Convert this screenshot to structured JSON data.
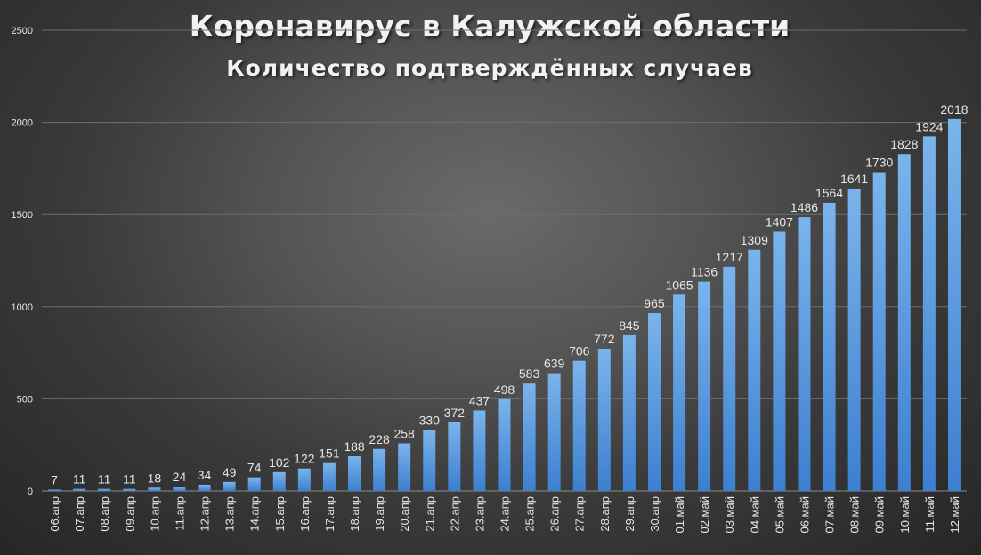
{
  "colors": {
    "bar_top": "#7ab4ec",
    "bar_bottom": "#3d7fd0",
    "text": "#e6e6e6",
    "grid": "#6e6e6e"
  },
  "chart_data": {
    "type": "bar",
    "title": "Коронавирус в Калужской области",
    "subtitle": "Количество подтверждённых случаев",
    "categories": [
      "06.апр",
      "07.апр",
      "08.апр",
      "09.апр",
      "10.апр",
      "11.апр",
      "12.апр",
      "13.апр",
      "14.апр",
      "15.апр",
      "16.апр",
      "17.апр",
      "18.апр",
      "19.апр",
      "20.апр",
      "21.апр",
      "22.апр",
      "23.апр",
      "24.апр",
      "25.апр",
      "26.апр",
      "27.апр",
      "28.апр",
      "29.апр",
      "30.апр",
      "01.май",
      "02.май",
      "03.май",
      "04.май",
      "05.май",
      "06.май",
      "07.май",
      "08.май",
      "09.май",
      "10.май",
      "11.май",
      "12.май"
    ],
    "values": [
      7,
      11,
      11,
      11,
      18,
      24,
      34,
      49,
      74,
      102,
      122,
      151,
      188,
      228,
      258,
      330,
      372,
      437,
      498,
      583,
      639,
      706,
      772,
      845,
      965,
      1065,
      1136,
      1217,
      1309,
      1407,
      1486,
      1564,
      1641,
      1730,
      1828,
      1924,
      2018
    ],
    "yticks": [
      0,
      500,
      1000,
      1500,
      2000,
      2500
    ],
    "ylim": [
      0,
      2500
    ],
    "grid": true,
    "legend": "none"
  }
}
